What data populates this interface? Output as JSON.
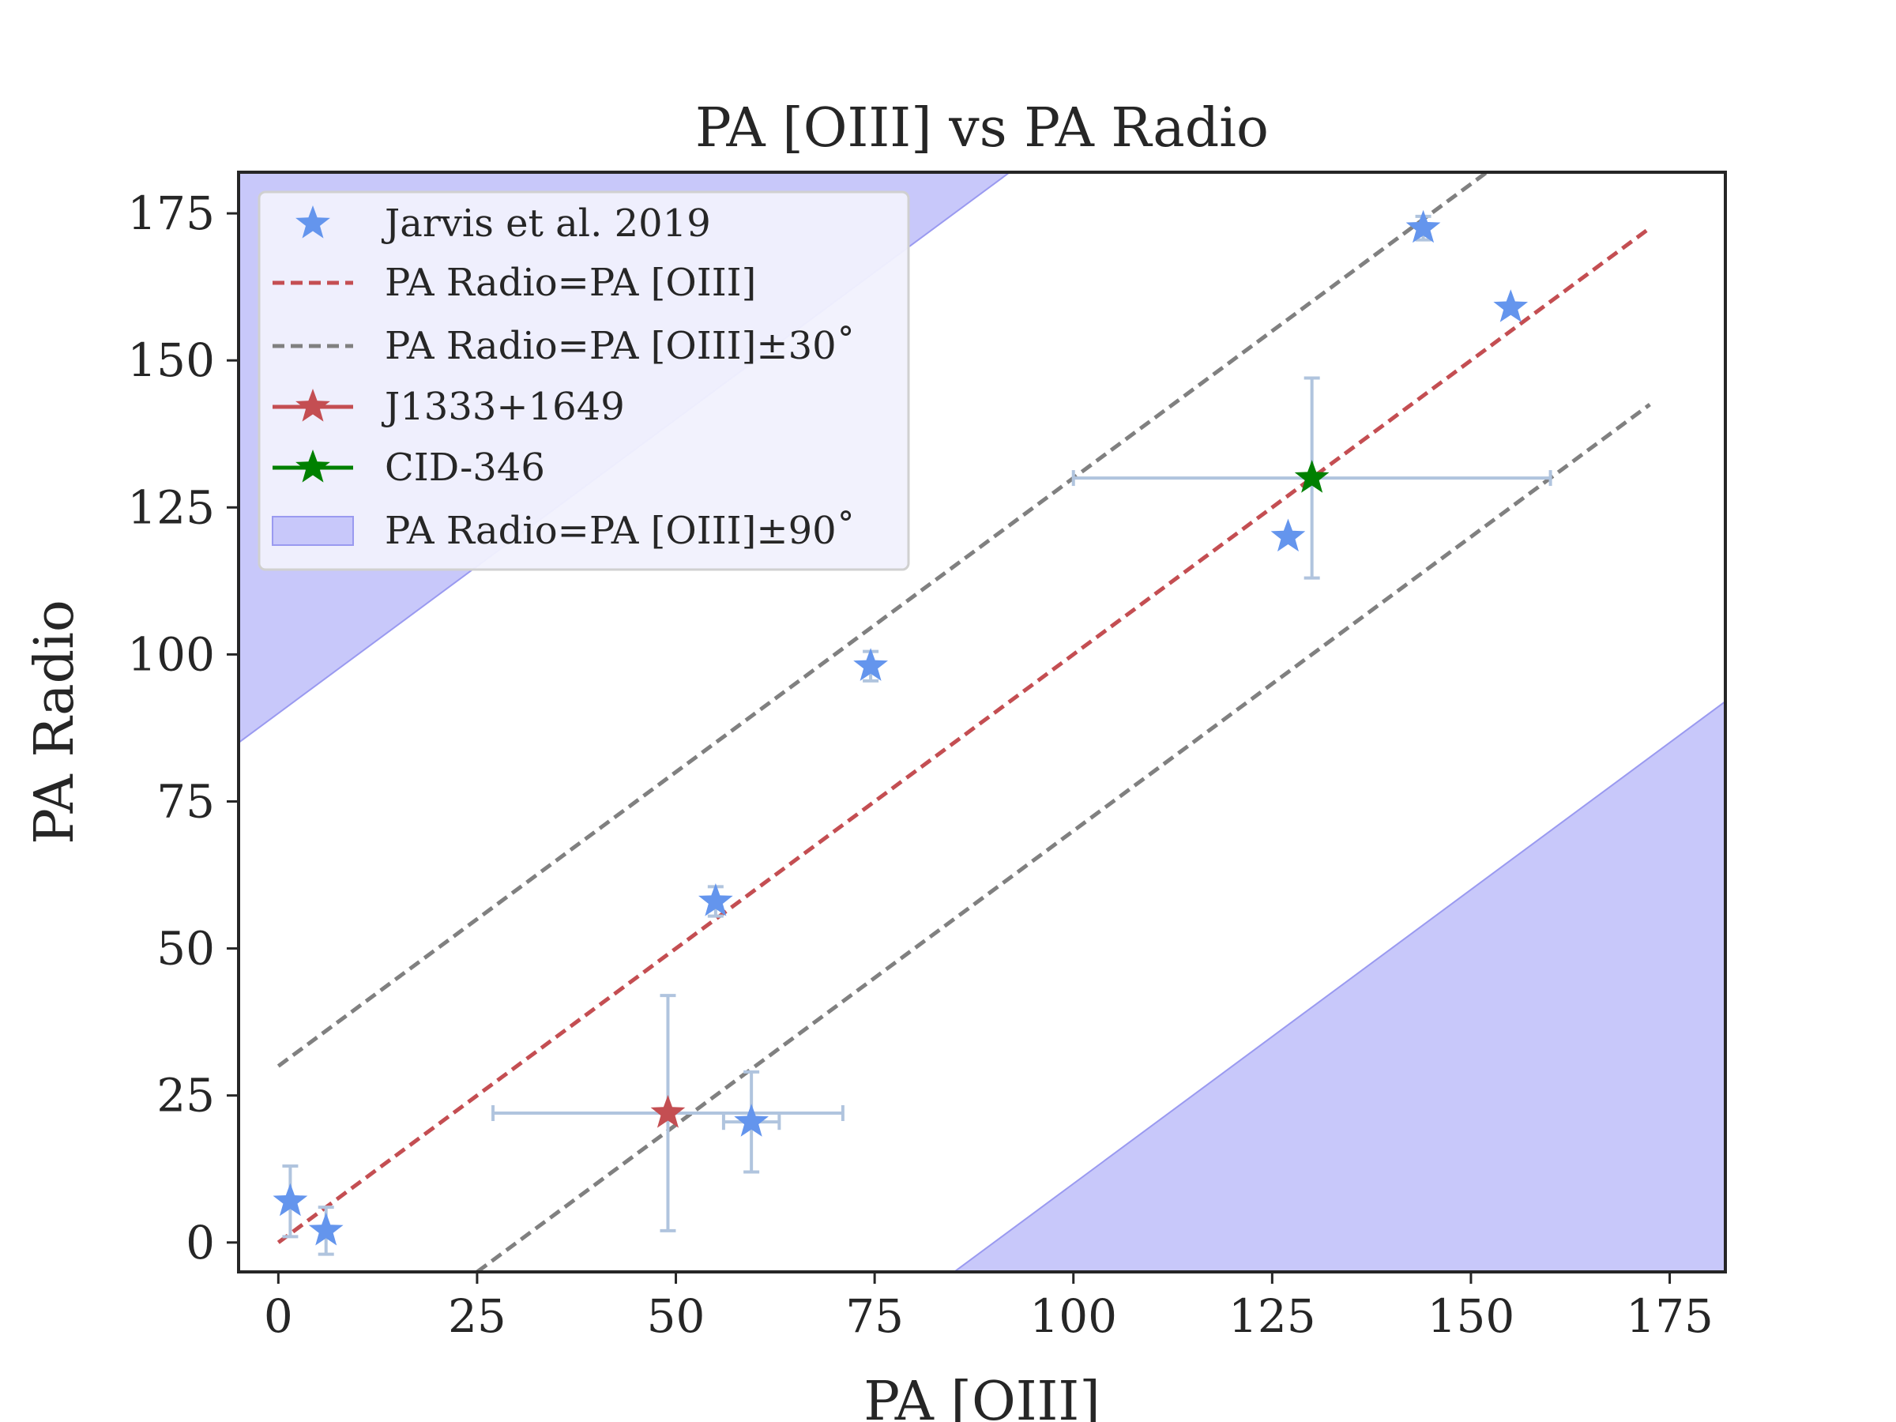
{
  "chart_data": {
    "type": "scatter",
    "title": "PA [OIII] vs PA Radio",
    "xlabel": "PA [OIII]",
    "ylabel": "PA Radio",
    "xlim": [
      -5,
      182
    ],
    "ylim": [
      -5,
      182
    ],
    "xticks": [
      0,
      25,
      50,
      75,
      100,
      125,
      150,
      175
    ],
    "yticks": [
      0,
      25,
      50,
      75,
      100,
      125,
      150,
      175
    ],
    "grid": false,
    "legend_position": "top-left",
    "colors": {
      "jarvis": "#6495ed",
      "errorbar": "#b0c4de",
      "identity_line": "#c44e52",
      "offset_lines": "#808080",
      "j1333": "#c44e52",
      "cid346": "#008000",
      "band": "#c8c8fa",
      "band_edge": "#9a9af0"
    },
    "legend": [
      {
        "key": "jarvis",
        "label": "Jarvis et al. 2019"
      },
      {
        "key": "identity",
        "label": " PA Radio=PA [OIII]"
      },
      {
        "key": "offset",
        "label": " PA Radio=PA [OIII]±30˚"
      },
      {
        "key": "j1333",
        "label": "J1333+1649"
      },
      {
        "key": "cid346",
        "label": "CID-346"
      },
      {
        "key": "band",
        "label": " PA Radio=PA [OIII]±90˚"
      }
    ],
    "lines": [
      {
        "name": "PA Radio=PA [OIII]",
        "x": [
          0,
          172.5
        ],
        "y": [
          0,
          172.5
        ],
        "style": "dashed"
      },
      {
        "name": "PA Radio=PA [OIII]+30",
        "x": [
          0,
          152
        ],
        "y": [
          30,
          182
        ],
        "style": "dashed"
      },
      {
        "name": "PA Radio=PA [OIII]-30",
        "x": [
          25,
          172.5
        ],
        "y": [
          -5,
          142.5
        ],
        "style": "dashed"
      }
    ],
    "fill_regions": [
      {
        "name": "PA Radio=PA [OIII]+90",
        "points": [
          [
            -5,
            85
          ],
          [
            -5,
            182
          ],
          [
            92,
            182
          ]
        ]
      },
      {
        "name": "PA Radio=PA [OIII]-90",
        "points": [
          [
            85,
            -5
          ],
          [
            182,
            -5
          ],
          [
            182,
            92
          ]
        ]
      }
    ],
    "series": [
      {
        "name": "Jarvis et al. 2019",
        "points": [
          {
            "x": 1.5,
            "y": 7,
            "yerr": 6
          },
          {
            "x": 6,
            "y": 2,
            "yerr": 4
          },
          {
            "x": 55,
            "y": 58,
            "yerr": 2.5
          },
          {
            "x": 59.5,
            "y": 20.5,
            "xerr": 3.5,
            "yerr": 8.5
          },
          {
            "x": 74.5,
            "y": 98,
            "yerr": 2.5
          },
          {
            "x": 127,
            "y": 120
          },
          {
            "x": 144,
            "y": 172.5,
            "yerr": 2
          },
          {
            "x": 155,
            "y": 159
          }
        ]
      },
      {
        "name": "J1333+1649",
        "points": [
          {
            "x": 49,
            "y": 22,
            "xerr": 22,
            "yerr": 20
          }
        ]
      },
      {
        "name": "CID-346",
        "points": [
          {
            "x": 130,
            "y": 130,
            "xerr": 30,
            "yerr": 17
          }
        ]
      }
    ]
  }
}
